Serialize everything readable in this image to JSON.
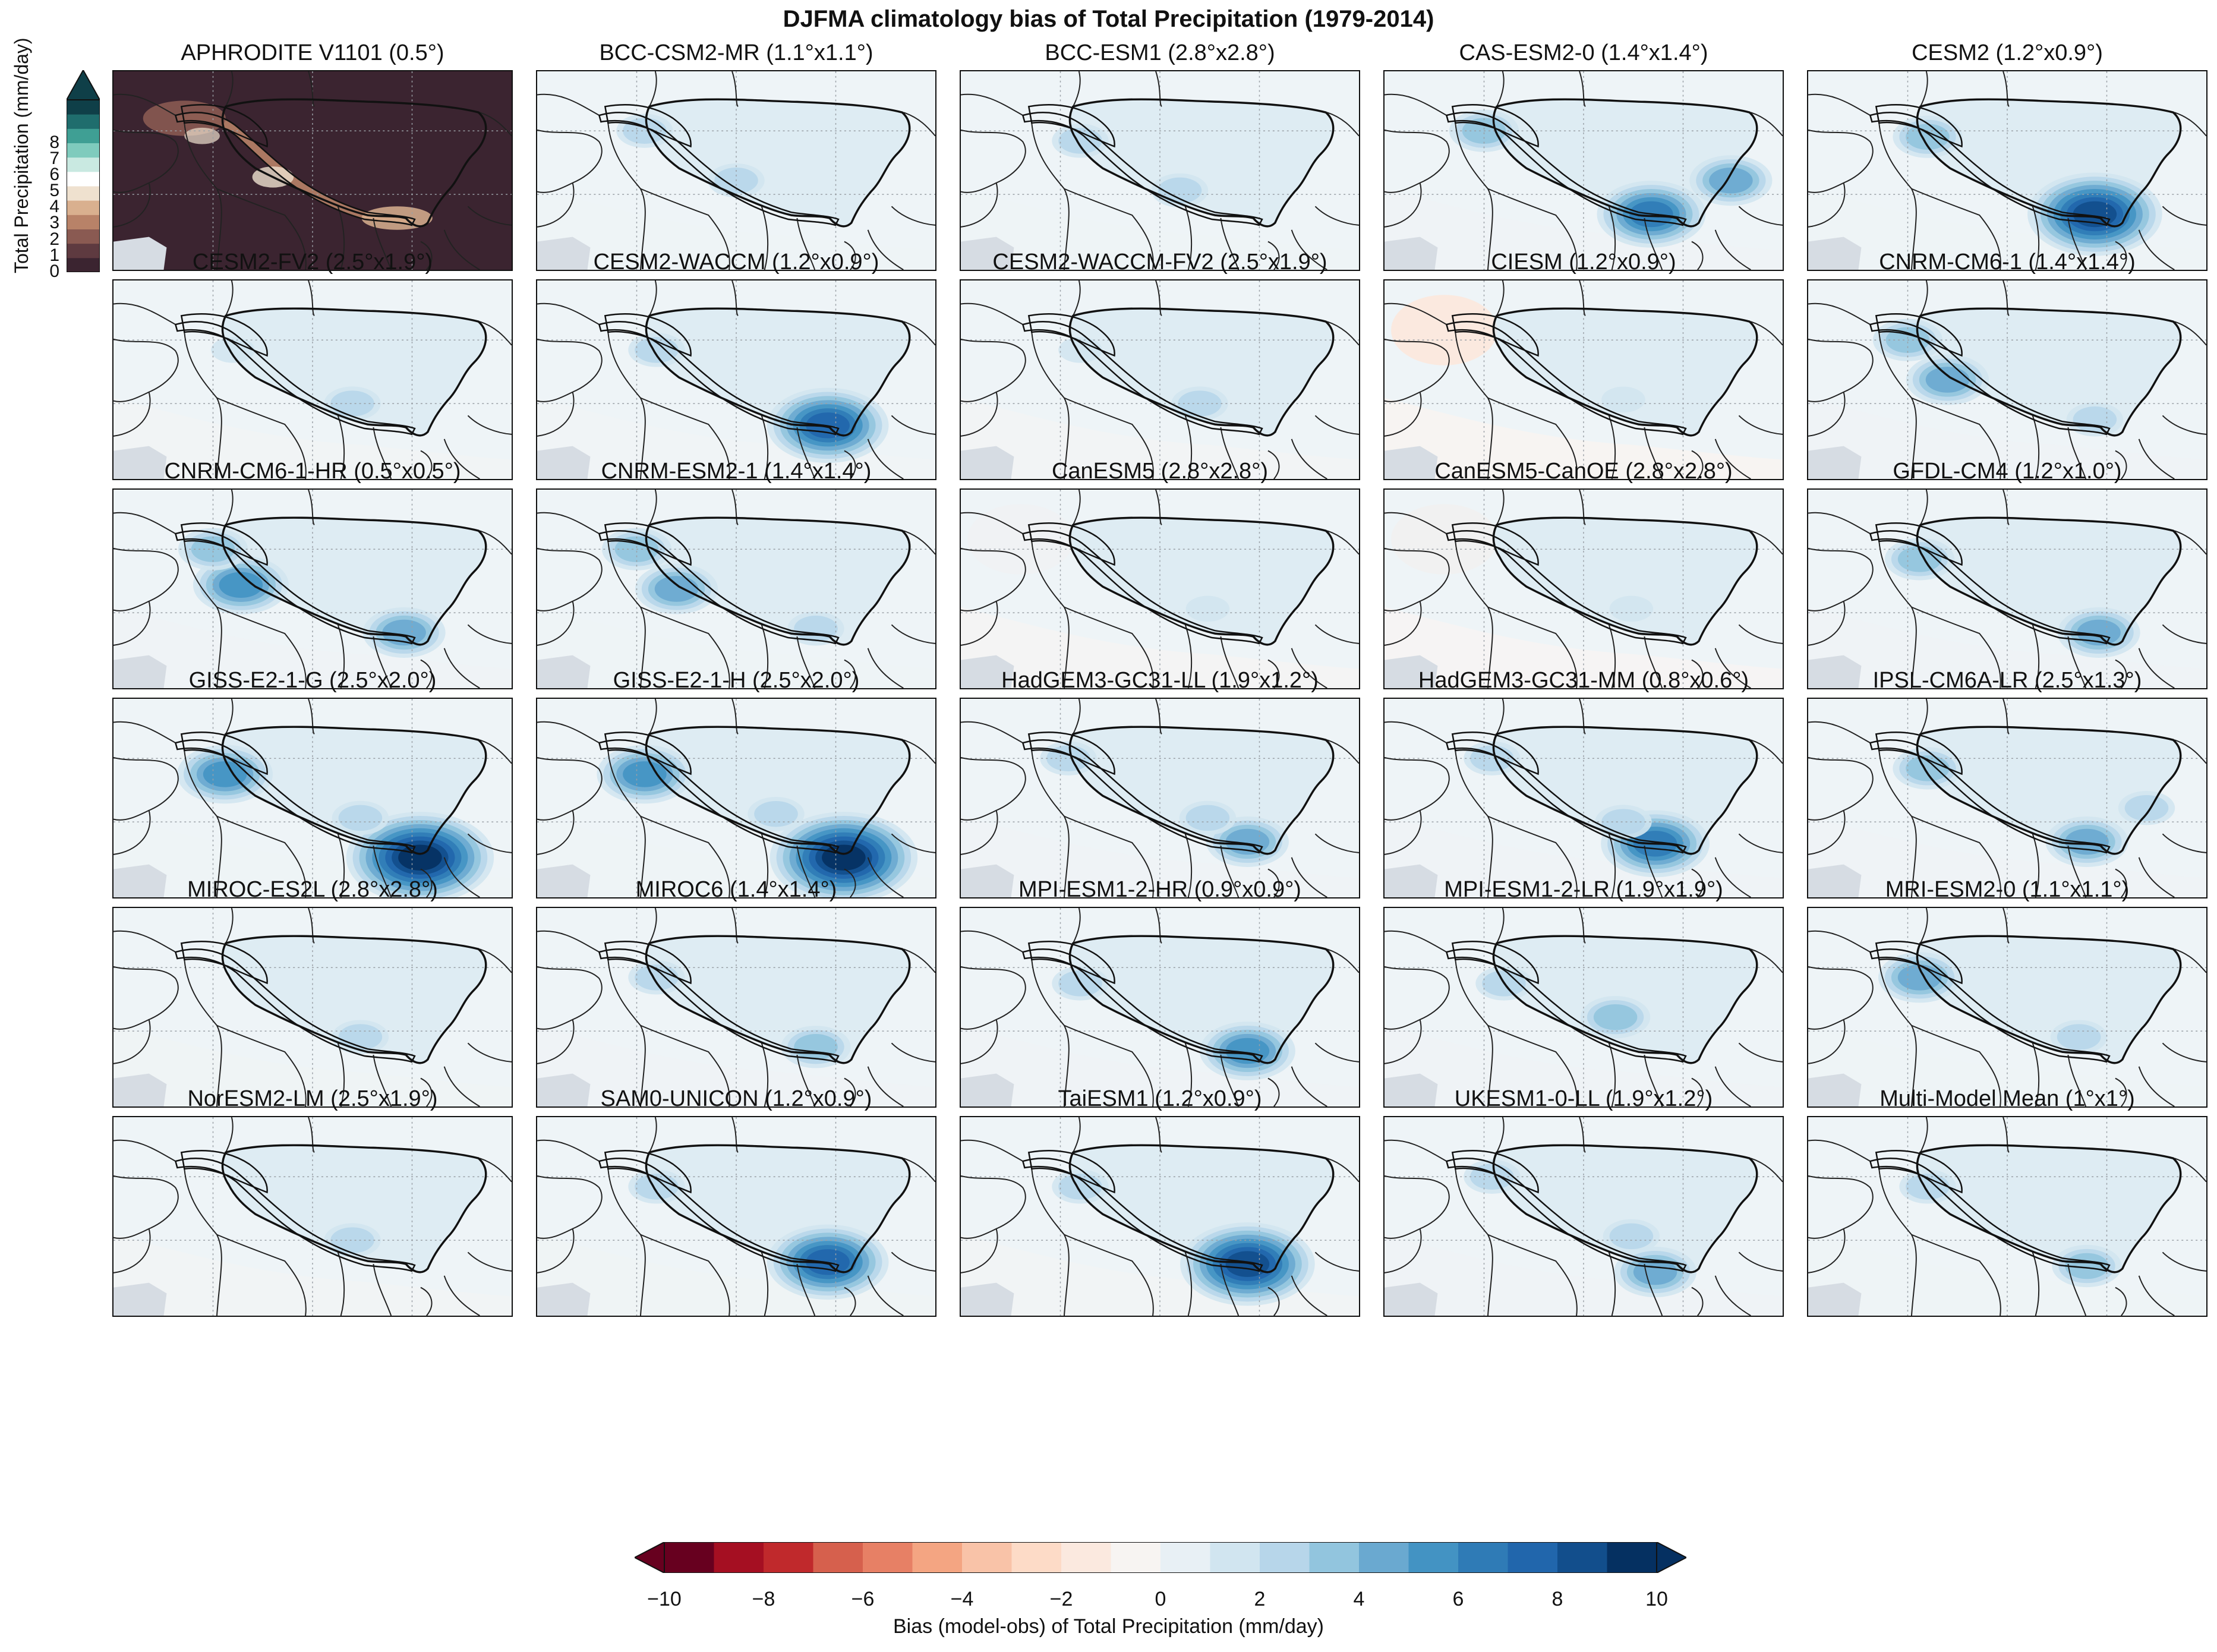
{
  "title": "DJFMA climatology bias of Total Precipitation (1979-2014)",
  "panels": [
    {
      "name": "APHRODITE V1101 (0.5°)",
      "kind": "obs"
    },
    {
      "name": "BCC-CSM2-MR (1.1°x1.1°)",
      "kind": "bias",
      "hot": [
        [
          0.5,
          0.55,
          1.5
        ],
        [
          0.27,
          0.3,
          2
        ]
      ],
      "dry": 0.1
    },
    {
      "name": "BCC-ESM1 (2.8°x2.8°)",
      "kind": "bias",
      "hot": [
        [
          0.55,
          0.6,
          1.5
        ],
        [
          0.3,
          0.35,
          1.5
        ]
      ],
      "dry": 0.1
    },
    {
      "name": "CAS-ESM2-0 (1.4°x1.4°)",
      "kind": "bias",
      "hot": [
        [
          0.67,
          0.72,
          6
        ],
        [
          0.87,
          0.55,
          4
        ],
        [
          0.25,
          0.3,
          3
        ]
      ],
      "dry": 0.15
    },
    {
      "name": "CESM2 (1.2°x0.9°)",
      "kind": "bias",
      "hot": [
        [
          0.72,
          0.72,
          8
        ],
        [
          0.3,
          0.33,
          3
        ]
      ],
      "dry": 0.1
    },
    {
      "name": "CESM2-FV2 (2.5°x1.9°)",
      "kind": "bias",
      "hot": [
        [
          0.6,
          0.62,
          2
        ],
        [
          0.3,
          0.35,
          1
        ]
      ],
      "dry": 0.3
    },
    {
      "name": "CESM2-WACCM (1.2°x0.9°)",
      "kind": "bias",
      "hot": [
        [
          0.73,
          0.73,
          7
        ],
        [
          0.3,
          0.35,
          2
        ]
      ],
      "dry": 0.25
    },
    {
      "name": "CESM2-WACCM-FV2 (2.5°x1.9°)",
      "kind": "bias",
      "hot": [
        [
          0.6,
          0.62,
          1.5
        ],
        [
          0.3,
          0.35,
          1
        ]
      ],
      "dry": 0.4
    },
    {
      "name": "CIESM (1.2°x0.9°)",
      "kind": "bias",
      "hot": [
        [
          0.6,
          0.6,
          0.5
        ]
      ],
      "dry": 1.5
    },
    {
      "name": "CNRM-CM6-1 (1.4°x1.4°)",
      "kind": "bias",
      "hot": [
        [
          0.35,
          0.5,
          4
        ],
        [
          0.25,
          0.3,
          3
        ],
        [
          0.72,
          0.7,
          2
        ]
      ],
      "dry": 0.15
    },
    {
      "name": "CNRM-CM6-1-HR (0.5°x0.5°)",
      "kind": "bias",
      "hot": [
        [
          0.32,
          0.48,
          5
        ],
        [
          0.73,
          0.72,
          4
        ],
        [
          0.25,
          0.3,
          3
        ]
      ],
      "dry": 0.15
    },
    {
      "name": "CNRM-ESM2-1 (1.4°x1.4°)",
      "kind": "bias",
      "hot": [
        [
          0.35,
          0.5,
          4
        ],
        [
          0.25,
          0.3,
          3
        ],
        [
          0.7,
          0.7,
          2
        ]
      ],
      "dry": 0.1
    },
    {
      "name": "CanESM5 (2.8°x2.8°)",
      "kind": "bias",
      "hot": [
        [
          0.62,
          0.6,
          1
        ]
      ],
      "dry": 0.7
    },
    {
      "name": "CanESM5-CanOE (2.8°x2.8°)",
      "kind": "bias",
      "hot": [
        [
          0.62,
          0.6,
          1
        ]
      ],
      "dry": 0.8
    },
    {
      "name": "GFDL-CM4 (1.2°x1.0°)",
      "kind": "bias",
      "hot": [
        [
          0.73,
          0.72,
          4
        ],
        [
          0.28,
          0.35,
          3
        ]
      ],
      "dry": 0.15
    },
    {
      "name": "GISS-E2-1-G (2.5°x2.0°)",
      "kind": "bias",
      "hot": [
        [
          0.77,
          0.8,
          10
        ],
        [
          0.28,
          0.38,
          5
        ],
        [
          0.62,
          0.6,
          2
        ]
      ],
      "dry": 0.1
    },
    {
      "name": "GISS-E2-1-H (2.5°x2.0°)",
      "kind": "bias",
      "hot": [
        [
          0.77,
          0.8,
          10
        ],
        [
          0.27,
          0.38,
          5
        ],
        [
          0.6,
          0.58,
          2
        ]
      ],
      "dry": 0.1
    },
    {
      "name": "HadGEM3-GC31-LL (1.9°x1.2°)",
      "kind": "bias",
      "hot": [
        [
          0.72,
          0.72,
          4
        ],
        [
          0.62,
          0.6,
          2
        ],
        [
          0.27,
          0.3,
          2
        ]
      ],
      "dry": 0.15
    },
    {
      "name": "HadGEM3-GC31-MM (0.8°x0.6°)",
      "kind": "bias",
      "hot": [
        [
          0.68,
          0.73,
          6
        ],
        [
          0.6,
          0.62,
          2
        ],
        [
          0.27,
          0.3,
          2
        ]
      ],
      "dry": 0.15
    },
    {
      "name": "IPSL-CM6A-LR (2.5°x1.3°)",
      "kind": "bias",
      "hot": [
        [
          0.7,
          0.72,
          4
        ],
        [
          0.3,
          0.35,
          3
        ],
        [
          0.85,
          0.55,
          2
        ]
      ],
      "dry": 0.15
    },
    {
      "name": "MIROC-ES2L (2.8°x2.8°)",
      "kind": "bias",
      "hot": [
        [
          0.62,
          0.65,
          2
        ]
      ],
      "dry": 0.2
    },
    {
      "name": "MIROC6 (1.4°x1.4°)",
      "kind": "bias",
      "hot": [
        [
          0.7,
          0.7,
          3
        ],
        [
          0.3,
          0.35,
          2
        ]
      ],
      "dry": 0.15
    },
    {
      "name": "MPI-ESM1-2-HR (0.9°x0.9°)",
      "kind": "bias",
      "hot": [
        [
          0.72,
          0.72,
          5
        ],
        [
          0.3,
          0.38,
          2
        ]
      ],
      "dry": 0.15
    },
    {
      "name": "MPI-ESM1-2-LR (1.9°x1.9°)",
      "kind": "bias",
      "hot": [
        [
          0.58,
          0.55,
          3
        ],
        [
          0.3,
          0.38,
          2
        ]
      ],
      "dry": 0.15
    },
    {
      "name": "MRI-ESM2-0 (1.1°x1.1°)",
      "kind": "bias",
      "hot": [
        [
          0.28,
          0.35,
          4
        ],
        [
          0.68,
          0.65,
          2
        ]
      ],
      "dry": 0.1
    },
    {
      "name": "NorESM2-LM (2.5°x1.9°)",
      "kind": "bias",
      "hot": [
        [
          0.6,
          0.62,
          2
        ]
      ],
      "dry": 0.3
    },
    {
      "name": "SAM0-UNICON (1.2°x0.9°)",
      "kind": "bias",
      "hot": [
        [
          0.73,
          0.73,
          7
        ],
        [
          0.3,
          0.35,
          2
        ]
      ],
      "dry": 0.2
    },
    {
      "name": "TaiESM1 (1.2°x0.9°)",
      "kind": "bias",
      "hot": [
        [
          0.72,
          0.74,
          8
        ],
        [
          0.3,
          0.35,
          1.5
        ]
      ],
      "dry": 0.3
    },
    {
      "name": "UKESM1-0-LL (1.9°x1.2°)",
      "kind": "bias",
      "hot": [
        [
          0.68,
          0.78,
          4
        ],
        [
          0.62,
          0.6,
          2
        ],
        [
          0.27,
          0.3,
          2
        ]
      ],
      "dry": 0.15
    },
    {
      "name": "Multi-Model Mean (1°x1°)",
      "kind": "bias",
      "hot": [
        [
          0.7,
          0.75,
          3
        ],
        [
          0.3,
          0.35,
          2
        ]
      ],
      "dry": 0.1
    }
  ],
  "obs_colorbar": {
    "label": "Total Precipitation (mm/day)",
    "ticks": [
      "0",
      "1",
      "2",
      "3",
      "4",
      "5",
      "6",
      "7",
      "8"
    ],
    "colors": [
      "#3b2430",
      "#5e3a40",
      "#8a5a52",
      "#b88268",
      "#d9b08f",
      "#efe1cf",
      "#ffffff",
      "#c9e9e1",
      "#7fcbbd",
      "#3f9f94",
      "#1f6d6d",
      "#0f3f48"
    ]
  },
  "bias_colorbar": {
    "label": "Bias (model-obs) of Total Precipitation (mm/day)",
    "ticks": [
      "−10",
      "−8",
      "−6",
      "−4",
      "−2",
      "0",
      "2",
      "4",
      "6",
      "8",
      "10"
    ],
    "colors": [
      "#67001f",
      "#a50f22",
      "#c0292c",
      "#d6604d",
      "#e78065",
      "#f4a582",
      "#f9c3a8",
      "#fddbc7",
      "#fbe9df",
      "#f7f4f2",
      "#e8f0f5",
      "#d1e5f0",
      "#b7d6ea",
      "#92c5de",
      "#6aa9d0",
      "#4393c3",
      "#2f7bb6",
      "#2166ac",
      "#124e8c",
      "#053061"
    ]
  }
}
